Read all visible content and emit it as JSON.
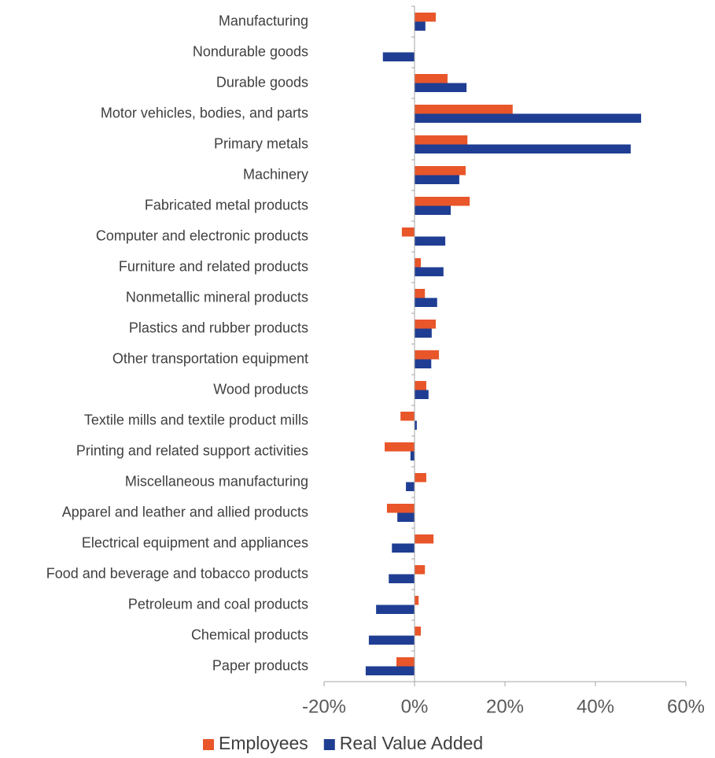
{
  "chart_data": {
    "type": "bar",
    "orientation": "horizontal",
    "categories": [
      "Manufacturing",
      "Nondurable goods",
      "Durable goods",
      "Motor vehicles, bodies, and parts",
      "Primary metals",
      "Machinery",
      "Fabricated metal products",
      "Computer and electronic products",
      "Furniture and related products",
      "Nonmetallic mineral products",
      "Plastics and rubber products",
      "Other transportation equipment",
      "Wood products",
      "Textile mills and textile product mills",
      "Printing and related support activities",
      "Miscellaneous manufacturing",
      "Apparel and leather and allied products",
      "Electrical equipment and appliances",
      "Food and beverage and tobacco products",
      "Petroleum and coal products",
      "Chemical products",
      "Paper products"
    ],
    "series": [
      {
        "name": "Employees",
        "color": "#e8562a",
        "values": [
          4.7,
          0,
          7.3,
          21.7,
          11.7,
          11.3,
          12.2,
          -2.8,
          1.4,
          2.3,
          4.7,
          5.4,
          2.6,
          -3.1,
          -6.6,
          2.6,
          -6.1,
          4.2,
          2.3,
          0.9,
          1.4,
          -4.0
        ]
      },
      {
        "name": "Real Value Added",
        "color": "#1f3e93",
        "values": [
          2.4,
          -7.0,
          11.5,
          50.1,
          47.8,
          9.9,
          8.0,
          6.8,
          6.4,
          5.0,
          3.8,
          3.7,
          3.1,
          0.5,
          -0.9,
          -1.9,
          -3.8,
          -5.0,
          -5.7,
          -8.5,
          -10.1,
          -10.8
        ]
      }
    ],
    "xlim": [
      -20,
      60
    ],
    "xticks": [
      {
        "value": -20,
        "label": "-20%"
      },
      {
        "value": 0,
        "label": "0%"
      },
      {
        "value": 20,
        "label": "20%"
      },
      {
        "value": 40,
        "label": "40%"
      },
      {
        "value": 60,
        "label": "60%"
      }
    ],
    "legend": "bottom"
  }
}
